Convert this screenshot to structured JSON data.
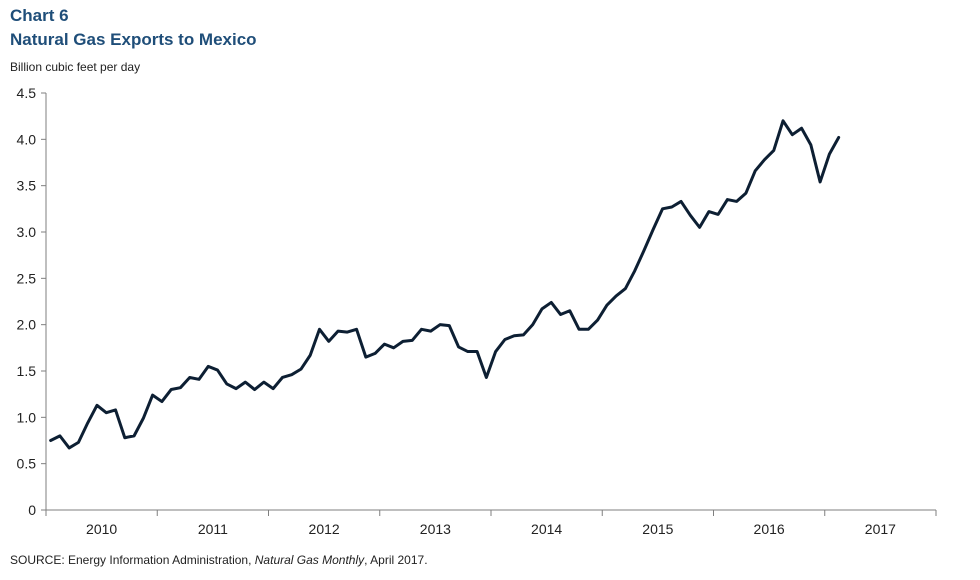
{
  "header": {
    "chart_number": "Chart 6",
    "title": "Natural Gas Exports to Mexico",
    "y_unit": "Billion cubic feet per day"
  },
  "footer": {
    "source_prefix": "SOURCE: Energy Information Administration, ",
    "source_publication": "Natural Gas Monthly",
    "source_suffix": ", April 2017."
  },
  "colors": {
    "title": "#1f4e79",
    "line": "#0d1f33",
    "axis": "#7f7f7f"
  },
  "chart_data": {
    "type": "line",
    "title": "Natural Gas Exports to Mexico",
    "ylabel": "Billion cubic feet per day",
    "xlabel": "",
    "ylim": [
      0,
      4.5
    ],
    "yticks": [
      "0",
      "0.5",
      "1.0",
      "1.5",
      "2.0",
      "2.5",
      "3.0",
      "3.5",
      "4.0",
      "4.5"
    ],
    "x_categories": [
      "2010",
      "2011",
      "2012",
      "2013",
      "2014",
      "2015",
      "2016",
      "2017"
    ],
    "grid": false,
    "legend": "none",
    "series": [
      {
        "start": "2010-01",
        "frequency": "monthly",
        "values": [
          0.75,
          0.8,
          0.67,
          0.73,
          0.94,
          1.13,
          1.05,
          1.08,
          0.78,
          0.8,
          0.99,
          1.24,
          1.17,
          1.3,
          1.32,
          1.43,
          1.41,
          1.55,
          1.51,
          1.36,
          1.31,
          1.38,
          1.3,
          1.38,
          1.31,
          1.43,
          1.46,
          1.52,
          1.67,
          1.95,
          1.82,
          1.93,
          1.92,
          1.95,
          1.65,
          1.69,
          1.79,
          1.75,
          1.82,
          1.83,
          1.95,
          1.93,
          2.0,
          1.99,
          1.76,
          1.71,
          1.71,
          1.43,
          1.71,
          1.84,
          1.88,
          1.89,
          2.0,
          2.17,
          2.24,
          2.11,
          2.15,
          1.95,
          1.95,
          2.05,
          2.21,
          2.31,
          2.39,
          2.58,
          2.8,
          3.03,
          3.25,
          3.27,
          3.33,
          3.18,
          3.05,
          3.22,
          3.19,
          3.35,
          3.33,
          3.42,
          3.66,
          3.78,
          3.88,
          4.2,
          4.05,
          4.12,
          3.94,
          3.54,
          3.84,
          4.02
        ]
      }
    ]
  }
}
